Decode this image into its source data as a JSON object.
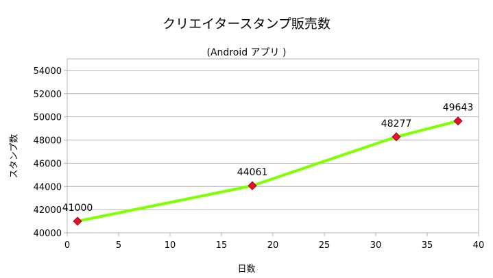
{
  "chart_data": {
    "type": "line",
    "title": "クリエイタースタンプ販売数",
    "subtitle": "(Android アプリ )",
    "xlabel": "日数",
    "ylabel": "スタンプ数",
    "x": [
      1,
      18,
      32,
      38
    ],
    "series": [
      {
        "values": [
          41000,
          44061,
          48277,
          49643
        ]
      }
    ],
    "data_labels": [
      "41000",
      "44061",
      "48277",
      "49643"
    ],
    "xlim": [
      0,
      40
    ],
    "ylim": [
      40000,
      55000
    ],
    "x_ticks": [
      "0",
      "5",
      "10",
      "15",
      "20",
      "25",
      "30",
      "35",
      "40"
    ],
    "y_ticks": [
      "40000",
      "42000",
      "44000",
      "46000",
      "48000",
      "50000",
      "52000",
      "54000"
    ],
    "grid": "horizontal",
    "legend": "none",
    "colors": {
      "line": "#7fff00",
      "marker": "#e8102a",
      "grid": "#b3b3b3",
      "axis": "#b3b3b3"
    }
  }
}
